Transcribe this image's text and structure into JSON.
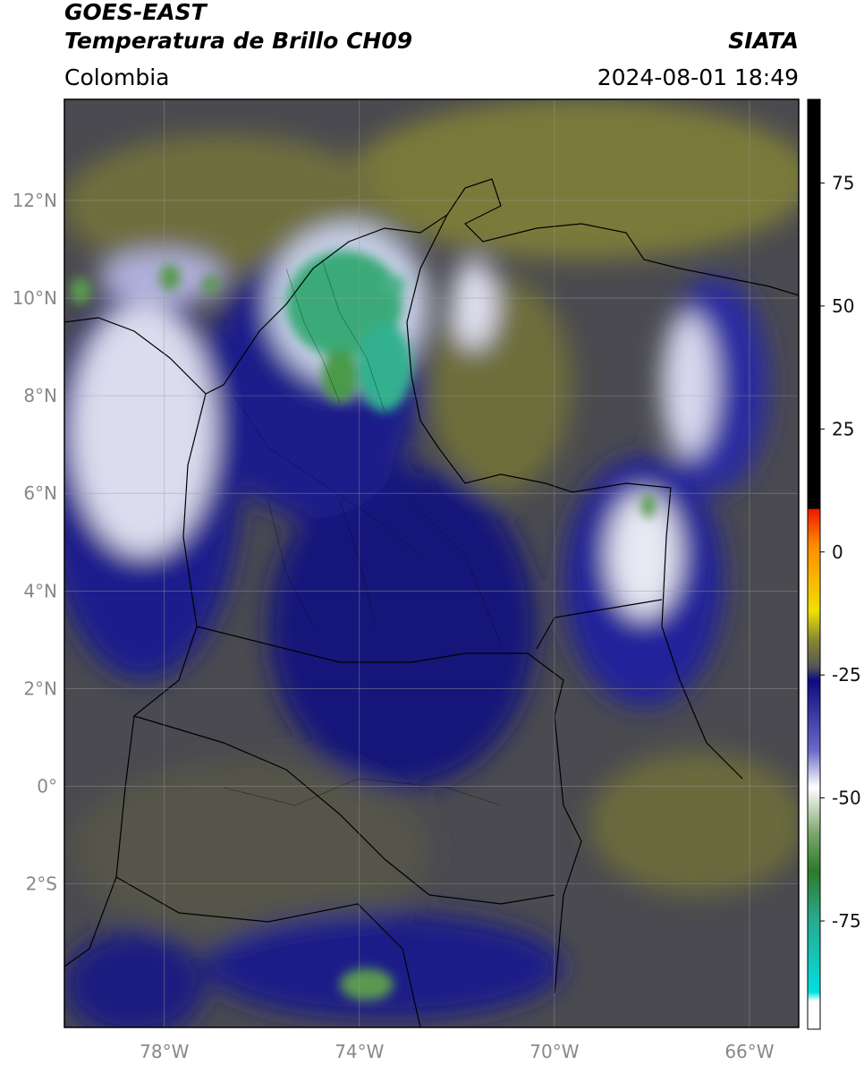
{
  "header": {
    "satellite": "GOES-EAST",
    "product": "Temperatura de Brillo CH09",
    "region": "Colombia",
    "source": "SIATA",
    "datetime": "2024-08-01 18:49"
  },
  "map": {
    "latlim": [
      -4.94,
      14.07
    ],
    "lonlim": [
      -80.05,
      -64.99
    ],
    "lat_ticks": [
      {
        "value": 12,
        "label": "12°N"
      },
      {
        "value": 10,
        "label": "10°N"
      },
      {
        "value": 8,
        "label": "8°N"
      },
      {
        "value": 6,
        "label": "6°N"
      },
      {
        "value": 4,
        "label": "4°N"
      },
      {
        "value": 2,
        "label": "2°N"
      },
      {
        "value": 0,
        "label": "0°"
      },
      {
        "value": -2,
        "label": "2°S"
      }
    ],
    "lon_ticks": [
      {
        "value": -78,
        "label": "78°W"
      },
      {
        "value": -74,
        "label": "74°W"
      },
      {
        "value": -70,
        "label": "70°W"
      },
      {
        "value": -66,
        "label": "66°W"
      }
    ]
  },
  "colorbar": {
    "lim": [
      -97,
      92
    ],
    "ticks": [
      75,
      50,
      25,
      0,
      -25,
      -50,
      -75
    ]
  }
}
